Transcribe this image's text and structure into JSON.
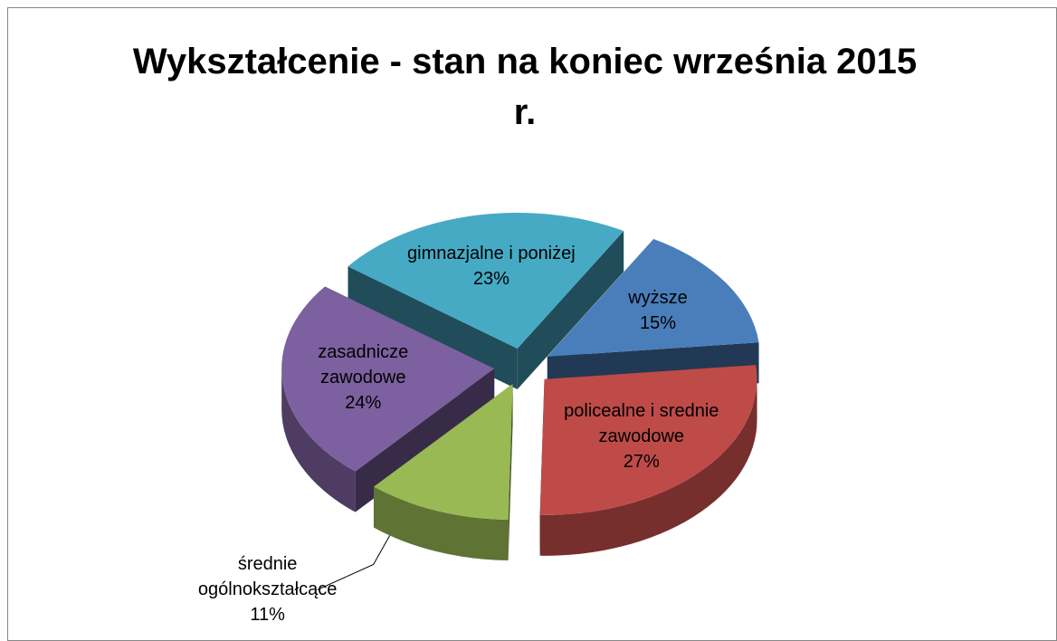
{
  "chart_data": {
    "type": "pie3d",
    "title": "Wykształcenie - stan na koniec września 2015 r.",
    "categories": [
      "wyższe",
      "policealne i srednie zawodowe",
      "średnie ogólnokształcące",
      "zasadnicze zawodowe",
      "gimnazjalne i poniżej"
    ],
    "values": [
      15,
      27,
      11,
      24,
      23
    ],
    "value_labels": [
      "15%",
      "27%",
      "11%",
      "24%",
      "23%"
    ],
    "colors": [
      "#4a7ebb",
      "#be4b48",
      "#98b954",
      "#7d60a0",
      "#46aac5"
    ]
  }
}
